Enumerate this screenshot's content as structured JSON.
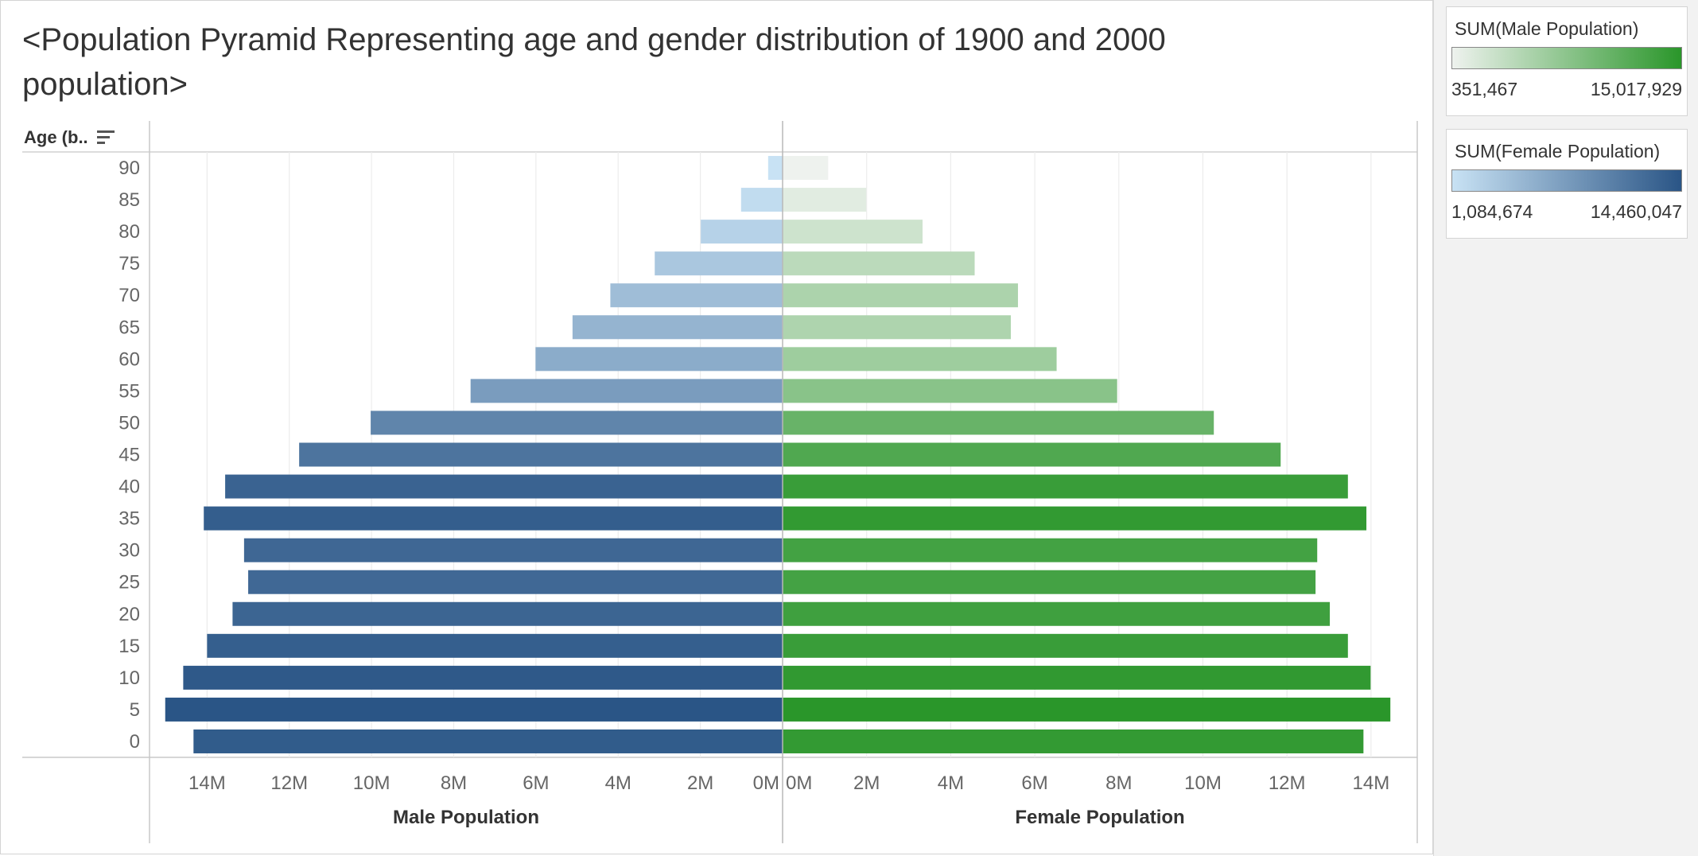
{
  "title": "<Population Pyramid Representing age and gender distribution of 1900 and 2000 population>",
  "row_header": "Age (b..",
  "legends": [
    {
      "title": "SUM(Male Population)",
      "min_label": "351,467",
      "max_label": "15,017,929",
      "color_low": "#eef2ee",
      "color_high": "#2a962a"
    },
    {
      "title": "SUM(Female Population)",
      "min_label": "1,084,674",
      "max_label": "14,460,047",
      "color_low": "#c8e2f4",
      "color_high": "#2a5586"
    }
  ],
  "chart_data": {
    "type": "bar",
    "subtype": "population-pyramid",
    "categories": [
      "90",
      "85",
      "80",
      "75",
      "70",
      "65",
      "60",
      "55",
      "50",
      "45",
      "40",
      "35",
      "30",
      "25",
      "20",
      "15",
      "10",
      "5",
      "0"
    ],
    "series": [
      {
        "name": "Male Population",
        "side": "left",
        "values": [
          351467,
          1010000,
          1990000,
          3110000,
          4190000,
          5110000,
          6010000,
          7590000,
          10020000,
          11760000,
          13560000,
          14080000,
          13100000,
          13000000,
          13380000,
          14000000,
          14580000,
          15017929,
          14330000
        ],
        "fill_by_value": [
          "#c8e2f4",
          "#2a5586"
        ]
      },
      {
        "name": "Female Population",
        "side": "right",
        "values": [
          1084674,
          1990000,
          3330000,
          4570000,
          5600000,
          5430000,
          6520000,
          7960000,
          10260000,
          11850000,
          13450000,
          13890000,
          12720000,
          12680000,
          13020000,
          13450000,
          13990000,
          14460047,
          13820000
        ],
        "fill_by_value": [
          "#eef2ee",
          "#2a962a"
        ]
      }
    ],
    "x_axes": [
      {
        "label": "Male Population",
        "ticks": [
          "14M",
          "12M",
          "10M",
          "8M",
          "6M",
          "4M",
          "2M",
          "0M"
        ],
        "reversed": true,
        "range": [
          0,
          15400000
        ]
      },
      {
        "label": "Female Population",
        "ticks": [
          "0M",
          "2M",
          "4M",
          "6M",
          "8M",
          "10M",
          "12M",
          "14M"
        ],
        "reversed": false,
        "range": [
          0,
          15100000
        ]
      }
    ],
    "ylabel": "Age (b..",
    "grid": true,
    "legend_placement": "right"
  }
}
